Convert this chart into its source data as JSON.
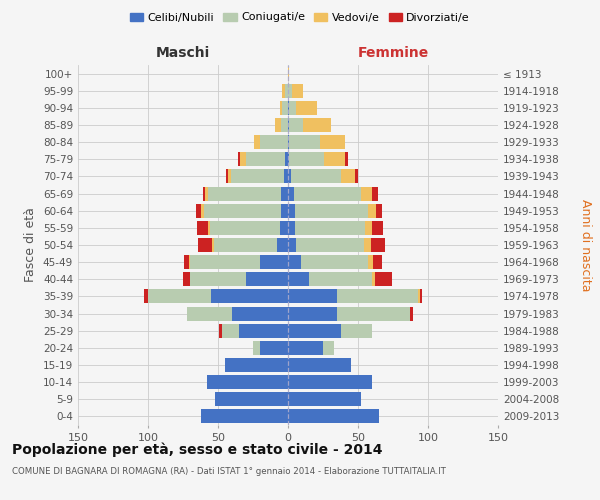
{
  "age_groups": [
    "0-4",
    "5-9",
    "10-14",
    "15-19",
    "20-24",
    "25-29",
    "30-34",
    "35-39",
    "40-44",
    "45-49",
    "50-54",
    "55-59",
    "60-64",
    "65-69",
    "70-74",
    "75-79",
    "80-84",
    "85-89",
    "90-94",
    "95-99",
    "100+"
  ],
  "birth_years": [
    "2009-2013",
    "2004-2008",
    "1999-2003",
    "1994-1998",
    "1989-1993",
    "1984-1988",
    "1979-1983",
    "1974-1978",
    "1969-1973",
    "1964-1968",
    "1959-1963",
    "1954-1958",
    "1949-1953",
    "1944-1948",
    "1939-1943",
    "1934-1938",
    "1929-1933",
    "1924-1928",
    "1919-1923",
    "1914-1918",
    "≤ 1913"
  ],
  "males": {
    "celibi": [
      62,
      52,
      58,
      45,
      20,
      35,
      40,
      55,
      30,
      20,
      8,
      6,
      5,
      5,
      3,
      2,
      0,
      0,
      0,
      0,
      0
    ],
    "coniugati": [
      0,
      0,
      0,
      0,
      5,
      12,
      32,
      45,
      40,
      50,
      45,
      50,
      55,
      52,
      38,
      28,
      20,
      5,
      4,
      2,
      0
    ],
    "vedovi": [
      0,
      0,
      0,
      0,
      0,
      0,
      0,
      0,
      0,
      1,
      1,
      1,
      2,
      2,
      2,
      4,
      4,
      4,
      2,
      2,
      0
    ],
    "divorziati": [
      0,
      0,
      0,
      0,
      0,
      2,
      0,
      3,
      5,
      3,
      10,
      8,
      4,
      2,
      1,
      2,
      0,
      0,
      0,
      0,
      0
    ]
  },
  "females": {
    "nubili": [
      65,
      52,
      60,
      45,
      25,
      38,
      35,
      35,
      15,
      9,
      6,
      5,
      5,
      4,
      2,
      1,
      1,
      1,
      1,
      0,
      0
    ],
    "coniugate": [
      0,
      0,
      0,
      0,
      8,
      22,
      52,
      58,
      45,
      48,
      48,
      50,
      52,
      48,
      36,
      25,
      22,
      10,
      5,
      3,
      0
    ],
    "vedove": [
      0,
      0,
      0,
      0,
      0,
      0,
      0,
      1,
      2,
      4,
      5,
      5,
      6,
      8,
      10,
      15,
      18,
      20,
      15,
      8,
      1
    ],
    "divorziate": [
      0,
      0,
      0,
      0,
      0,
      0,
      2,
      2,
      12,
      6,
      10,
      8,
      4,
      4,
      2,
      2,
      0,
      0,
      0,
      0,
      0
    ]
  },
  "colors": {
    "celibi_nubili": "#4472C4",
    "coniugati": "#B8CCB0",
    "vedovi": "#F0C060",
    "divorziati": "#CC2222"
  },
  "xlim": 150,
  "title": "Popolazione per età, sesso e stato civile - 2014",
  "subtitle": "COMUNE DI BAGNARA DI ROMAGNA (RA) - Dati ISTAT 1° gennaio 2014 - Elaborazione TUTTAITALIA.IT",
  "ylabel_left": "Fasce di età",
  "ylabel_right": "Anni di nascita",
  "xlabel_left": "Maschi",
  "xlabel_right": "Femmine",
  "legend_labels": [
    "Celibi/Nubili",
    "Coniugati/e",
    "Vedovi/e",
    "Divorziati/e"
  ],
  "background_color": "#f5f5f5",
  "grid_color": "#cccccc"
}
